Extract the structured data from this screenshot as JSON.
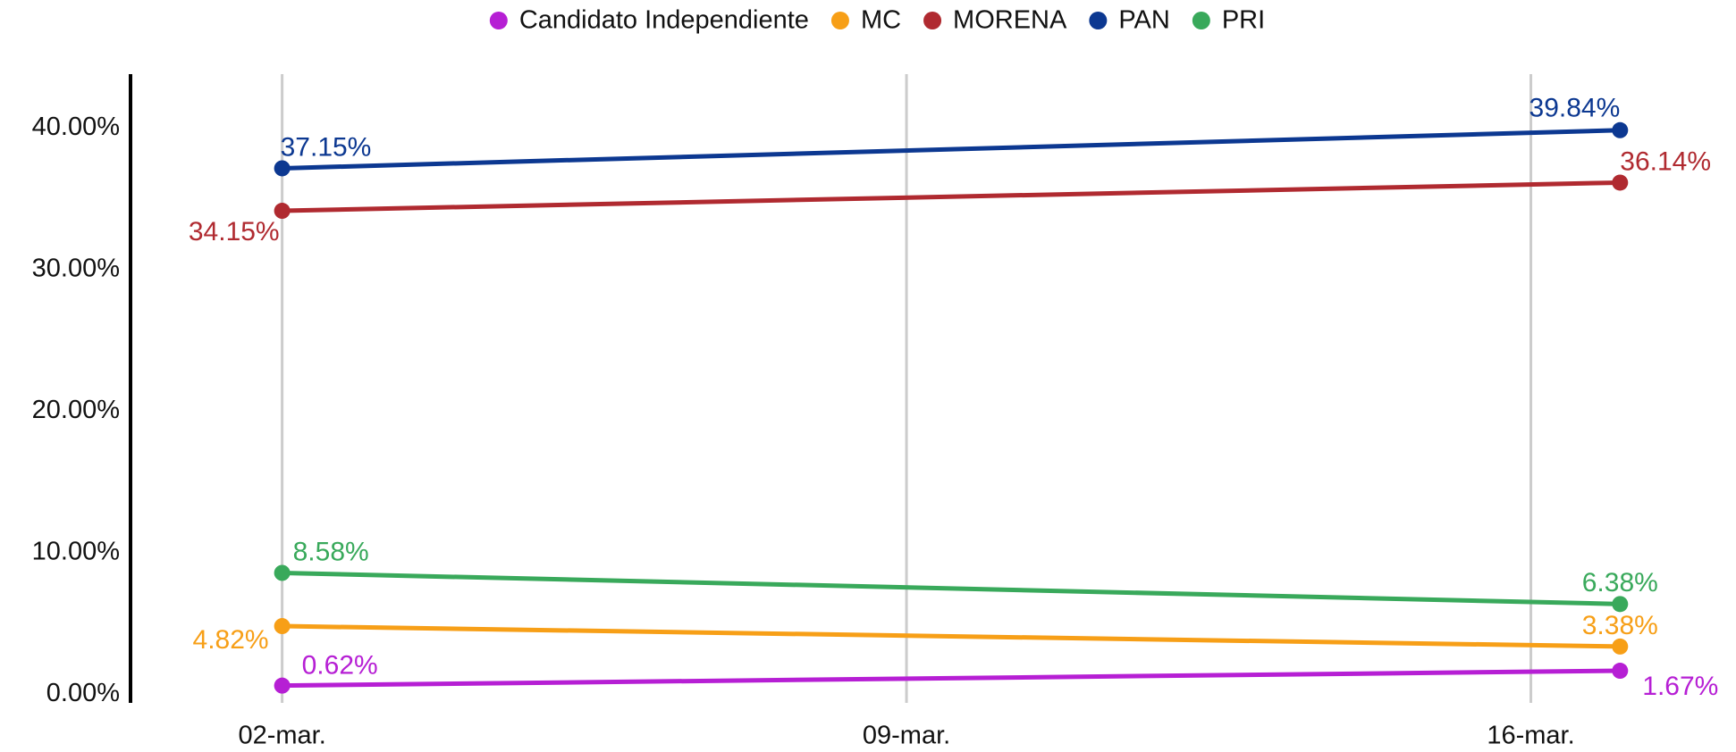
{
  "chart_data": {
    "type": "line",
    "x": [
      2,
      17
    ],
    "xlim": [
      0.3,
      18.3
    ],
    "xticks": [
      {
        "value": 2,
        "label": "02-mar."
      },
      {
        "value": 9,
        "label": "09-mar."
      },
      {
        "value": 16,
        "label": "16-mar."
      }
    ],
    "ylim": [
      -0.6,
      43.8
    ],
    "yticks": [
      {
        "value": 0,
        "label": "0.00%"
      },
      {
        "value": 10,
        "label": "10.00%"
      },
      {
        "value": 20,
        "label": "20.00%"
      },
      {
        "value": 30,
        "label": "30.00%"
      },
      {
        "value": 40,
        "label": "40.00%"
      }
    ],
    "grid": "x",
    "legend": "top",
    "series": [
      {
        "name": "Candidato Independiente",
        "color": "#b61fd4",
        "values": [
          0.62,
          1.67
        ],
        "value_labels": [
          "0.62%",
          "1.67%"
        ]
      },
      {
        "name": "MC",
        "color": "#f79f17",
        "values": [
          4.82,
          3.38
        ],
        "value_labels": [
          "4.82%",
          "3.38%"
        ]
      },
      {
        "name": "MORENA",
        "color": "#b02a30",
        "values": [
          34.15,
          36.14
        ],
        "value_labels": [
          "34.15%",
          "36.14%"
        ]
      },
      {
        "name": "PAN",
        "color": "#0c3891",
        "values": [
          37.15,
          39.84
        ],
        "value_labels": [
          "37.15%",
          "39.84%"
        ]
      },
      {
        "name": "PRI",
        "color": "#39a95b",
        "values": [
          8.58,
          6.38
        ],
        "value_labels": [
          "8.58%",
          "6.38%"
        ]
      }
    ]
  }
}
